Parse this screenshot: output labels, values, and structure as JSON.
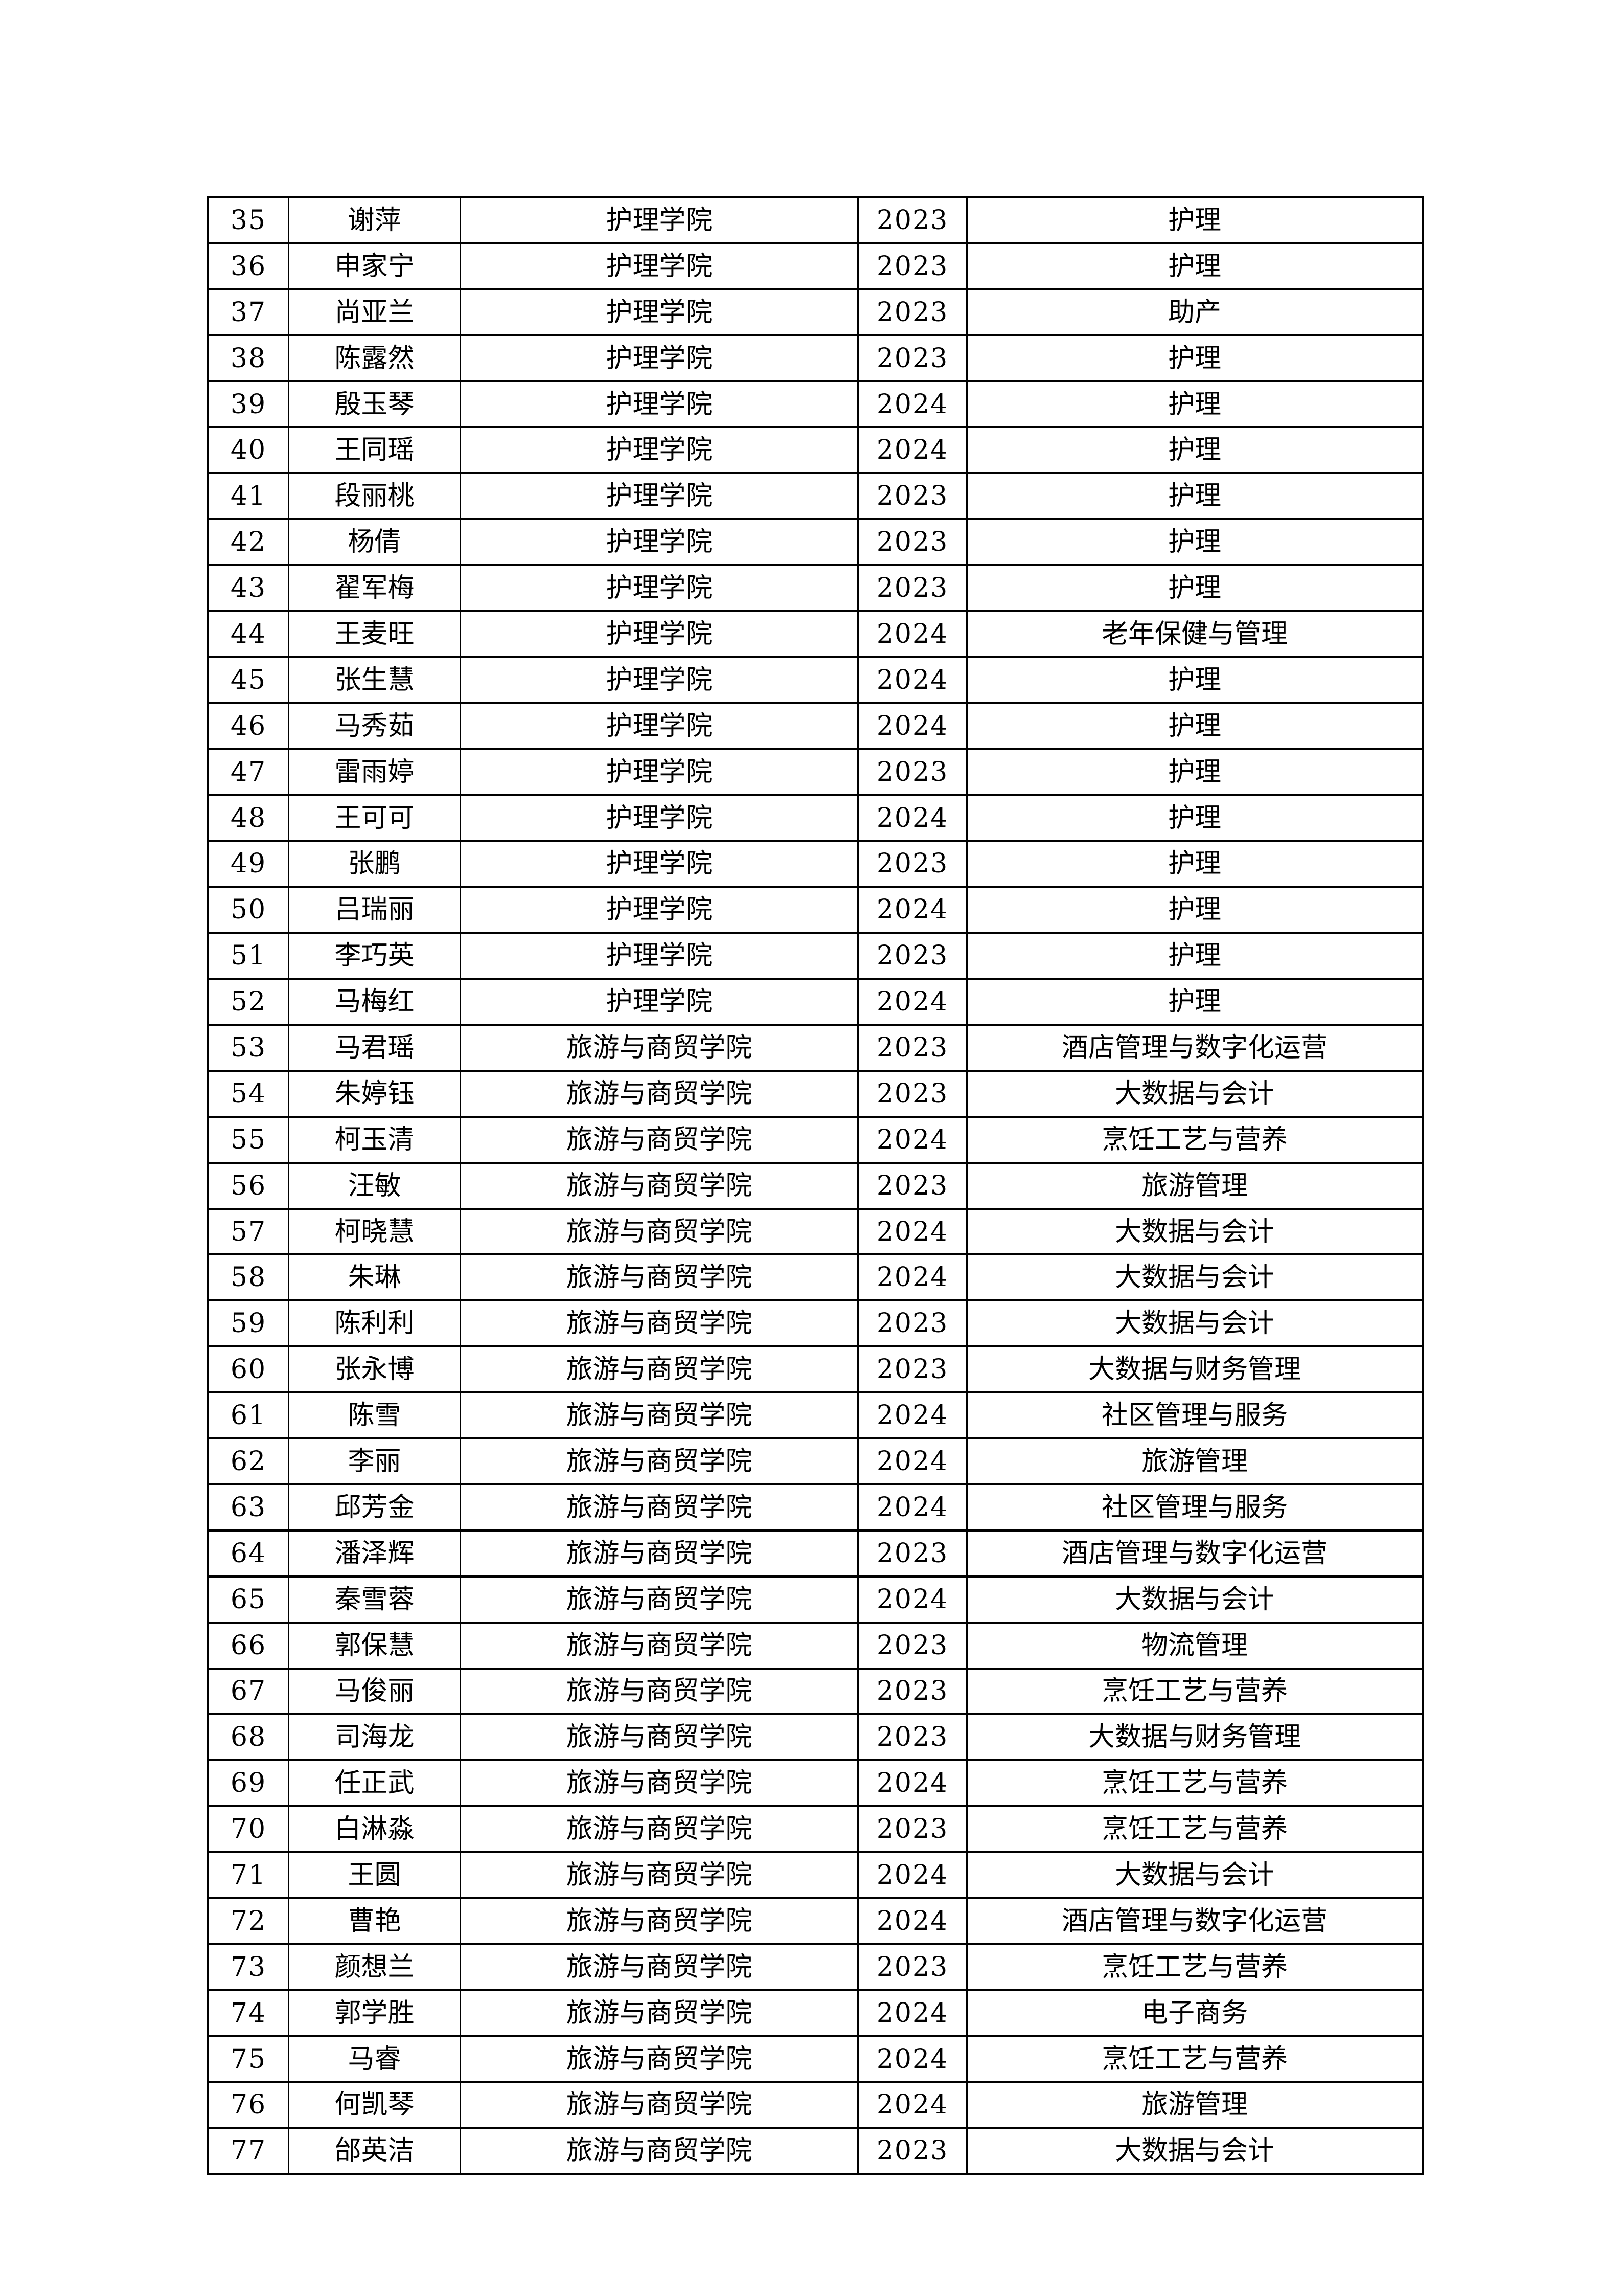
{
  "page": {
    "background": "#ffffff",
    "border_color": "#000000"
  },
  "table": {
    "rows": [
      {
        "no": "35",
        "name": "谢萍",
        "college": "护理学院",
        "year": "2023",
        "major": "护理"
      },
      {
        "no": "36",
        "name": "申家宁",
        "college": "护理学院",
        "year": "2023",
        "major": "护理"
      },
      {
        "no": "37",
        "name": "尚亚兰",
        "college": "护理学院",
        "year": "2023",
        "major": "助产"
      },
      {
        "no": "38",
        "name": "陈露然",
        "college": "护理学院",
        "year": "2023",
        "major": "护理"
      },
      {
        "no": "39",
        "name": "殷玉琴",
        "college": "护理学院",
        "year": "2024",
        "major": "护理"
      },
      {
        "no": "40",
        "name": "王同瑶",
        "college": "护理学院",
        "year": "2024",
        "major": "护理"
      },
      {
        "no": "41",
        "name": "段丽桃",
        "college": "护理学院",
        "year": "2023",
        "major": "护理"
      },
      {
        "no": "42",
        "name": "杨倩",
        "college": "护理学院",
        "year": "2023",
        "major": "护理"
      },
      {
        "no": "43",
        "name": "翟军梅",
        "college": "护理学院",
        "year": "2023",
        "major": "护理"
      },
      {
        "no": "44",
        "name": "王麦旺",
        "college": "护理学院",
        "year": "2024",
        "major": "老年保健与管理"
      },
      {
        "no": "45",
        "name": "张生慧",
        "college": "护理学院",
        "year": "2024",
        "major": "护理"
      },
      {
        "no": "46",
        "name": "马秀茹",
        "college": "护理学院",
        "year": "2024",
        "major": "护理"
      },
      {
        "no": "47",
        "name": "雷雨婷",
        "college": "护理学院",
        "year": "2023",
        "major": "护理"
      },
      {
        "no": "48",
        "name": "王可可",
        "college": "护理学院",
        "year": "2024",
        "major": "护理"
      },
      {
        "no": "49",
        "name": "张鹏",
        "college": "护理学院",
        "year": "2023",
        "major": "护理"
      },
      {
        "no": "50",
        "name": "吕瑞丽",
        "college": "护理学院",
        "year": "2024",
        "major": "护理"
      },
      {
        "no": "51",
        "name": "李巧英",
        "college": "护理学院",
        "year": "2023",
        "major": "护理"
      },
      {
        "no": "52",
        "name": "马梅红",
        "college": "护理学院",
        "year": "2024",
        "major": "护理"
      },
      {
        "no": "53",
        "name": "马君瑶",
        "college": "旅游与商贸学院",
        "year": "2023",
        "major": "酒店管理与数字化运营"
      },
      {
        "no": "54",
        "name": "朱婷钰",
        "college": "旅游与商贸学院",
        "year": "2023",
        "major": "大数据与会计"
      },
      {
        "no": "55",
        "name": "柯玉清",
        "college": "旅游与商贸学院",
        "year": "2024",
        "major": "烹饪工艺与营养"
      },
      {
        "no": "56",
        "name": "汪敏",
        "college": "旅游与商贸学院",
        "year": "2023",
        "major": "旅游管理"
      },
      {
        "no": "57",
        "name": "柯晓慧",
        "college": "旅游与商贸学院",
        "year": "2024",
        "major": "大数据与会计"
      },
      {
        "no": "58",
        "name": "朱琳",
        "college": "旅游与商贸学院",
        "year": "2024",
        "major": "大数据与会计"
      },
      {
        "no": "59",
        "name": "陈利利",
        "college": "旅游与商贸学院",
        "year": "2023",
        "major": "大数据与会计"
      },
      {
        "no": "60",
        "name": "张永博",
        "college": "旅游与商贸学院",
        "year": "2023",
        "major": "大数据与财务管理"
      },
      {
        "no": "61",
        "name": "陈雪",
        "college": "旅游与商贸学院",
        "year": "2024",
        "major": "社区管理与服务"
      },
      {
        "no": "62",
        "name": "李丽",
        "college": "旅游与商贸学院",
        "year": "2024",
        "major": "旅游管理"
      },
      {
        "no": "63",
        "name": "邱芳金",
        "college": "旅游与商贸学院",
        "year": "2024",
        "major": "社区管理与服务"
      },
      {
        "no": "64",
        "name": "潘泽辉",
        "college": "旅游与商贸学院",
        "year": "2023",
        "major": "酒店管理与数字化运营"
      },
      {
        "no": "65",
        "name": "秦雪蓉",
        "college": "旅游与商贸学院",
        "year": "2024",
        "major": "大数据与会计"
      },
      {
        "no": "66",
        "name": "郭保慧",
        "college": "旅游与商贸学院",
        "year": "2023",
        "major": "物流管理"
      },
      {
        "no": "67",
        "name": "马俊丽",
        "college": "旅游与商贸学院",
        "year": "2023",
        "major": "烹饪工艺与营养"
      },
      {
        "no": "68",
        "name": "司海龙",
        "college": "旅游与商贸学院",
        "year": "2023",
        "major": "大数据与财务管理"
      },
      {
        "no": "69",
        "name": "任正武",
        "college": "旅游与商贸学院",
        "year": "2024",
        "major": "烹饪工艺与营养"
      },
      {
        "no": "70",
        "name": "白淋淼",
        "college": "旅游与商贸学院",
        "year": "2023",
        "major": "烹饪工艺与营养"
      },
      {
        "no": "71",
        "name": "王圆",
        "college": "旅游与商贸学院",
        "year": "2024",
        "major": "大数据与会计"
      },
      {
        "no": "72",
        "name": "曹艳",
        "college": "旅游与商贸学院",
        "year": "2024",
        "major": "酒店管理与数字化运营"
      },
      {
        "no": "73",
        "name": "颜想兰",
        "college": "旅游与商贸学院",
        "year": "2023",
        "major": "烹饪工艺与营养"
      },
      {
        "no": "74",
        "name": "郭学胜",
        "college": "旅游与商贸学院",
        "year": "2024",
        "major": "电子商务"
      },
      {
        "no": "75",
        "name": "马睿",
        "college": "旅游与商贸学院",
        "year": "2024",
        "major": "烹饪工艺与营养"
      },
      {
        "no": "76",
        "name": "何凯琴",
        "college": "旅游与商贸学院",
        "year": "2024",
        "major": "旅游管理"
      },
      {
        "no": "77",
        "name": "邰英洁",
        "college": "旅游与商贸学院",
        "year": "2023",
        "major": "大数据与会计"
      }
    ]
  }
}
